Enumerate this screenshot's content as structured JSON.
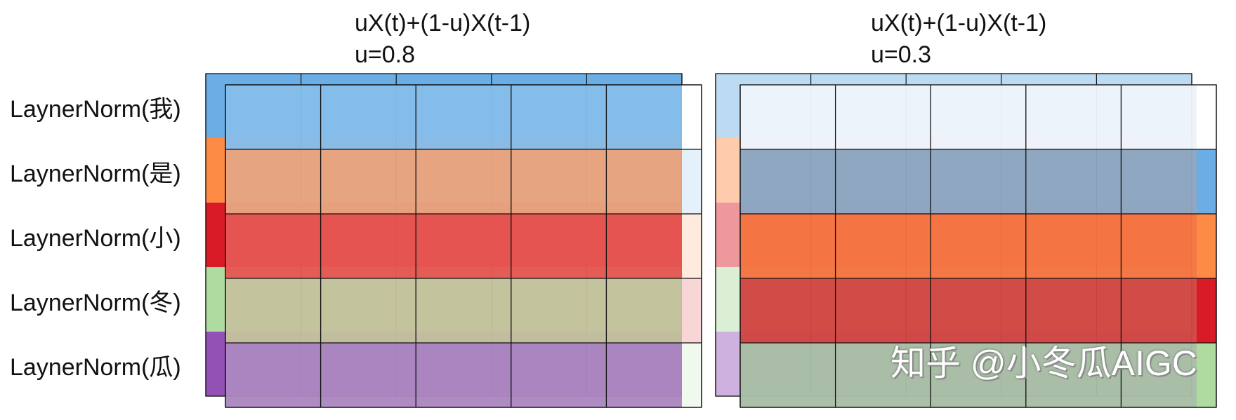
{
  "panels": [
    {
      "formula": "uX(t)+(1-u)X(t-1)",
      "u_label": "u=0.8",
      "u": 0.8
    },
    {
      "formula": "uX(t)+(1-u)X(t-1)",
      "u_label": "u=0.3",
      "u": 0.3
    }
  ],
  "rows": [
    {
      "label": "LaynerNorm(我)",
      "color": "#6aaee5"
    },
    {
      "label": "LaynerNorm(是)",
      "color": "#fd8b46"
    },
    {
      "label": "LaynerNorm(小)",
      "color": "#d91a27"
    },
    {
      "label": "LaynerNorm(冬)",
      "color": "#aedb9f"
    },
    {
      "label": "LaynerNorm(瓜)",
      "color": "#9351b5"
    }
  ],
  "colors": {
    "grid_line": "#111111",
    "light_grid_line": "#b9b9b9"
  },
  "watermark": "知乎 @小冬瓜AIGC"
}
